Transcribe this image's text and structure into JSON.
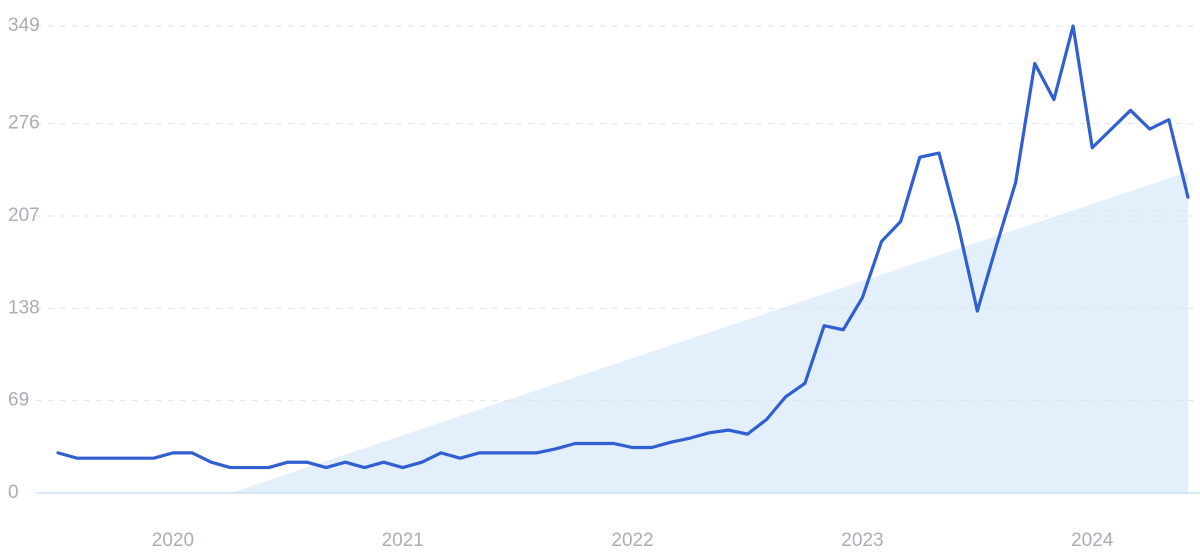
{
  "chart_data": {
    "type": "line",
    "categories": [
      null,
      null,
      null,
      null,
      null,
      null,
      "2020",
      null,
      null,
      null,
      null,
      null,
      null,
      null,
      null,
      null,
      null,
      null,
      "2021",
      null,
      null,
      null,
      null,
      null,
      null,
      null,
      null,
      null,
      null,
      null,
      "2022",
      null,
      null,
      null,
      null,
      null,
      null,
      null,
      null,
      null,
      null,
      null,
      "2023",
      null,
      null,
      null,
      null,
      null,
      null,
      null,
      null,
      null,
      null,
      null,
      "2024",
      null,
      null,
      null,
      null,
      null
    ],
    "series": [
      {
        "color": "#2f5fd0",
        "values": [
          30,
          26,
          26,
          26,
          26,
          26,
          30,
          30,
          23,
          19,
          19,
          19,
          23,
          23,
          19,
          23,
          19,
          23,
          19,
          23,
          30,
          26,
          30,
          30,
          30,
          30,
          33,
          37,
          37,
          37,
          34,
          34,
          38,
          41,
          45,
          47,
          44,
          55,
          72,
          82,
          125,
          122,
          146,
          188,
          203,
          251,
          254,
          200,
          136,
          185,
          232,
          321,
          294,
          349,
          258,
          272,
          286,
          272,
          279,
          221
        ]
      }
    ],
    "trend": {
      "color": "#dbe9fb",
      "values": [
        null,
        null,
        null,
        null,
        null,
        null,
        null,
        null,
        null,
        0,
        4.8,
        9.6,
        14.4,
        19.2,
        24,
        28.8,
        33.6,
        38.4,
        43.2,
        48,
        52.8,
        57.6,
        62.4,
        67.2,
        72,
        76.8,
        81.6,
        86.4,
        91.2,
        96,
        100.8,
        105.6,
        110.4,
        115.2,
        120,
        124.8,
        129.6,
        134.4,
        139.2,
        144,
        148.8,
        153.6,
        158.4,
        163.2,
        168,
        172.8,
        177.6,
        182.4,
        187.2,
        192,
        196.8,
        201.6,
        206.4,
        211.2,
        216,
        220.8,
        225.6,
        230.4,
        235.2,
        240
      ]
    },
    "ylim": [
      0,
      349
    ],
    "yticks": [
      0,
      69,
      138,
      207,
      276,
      349
    ],
    "grid": true
  }
}
